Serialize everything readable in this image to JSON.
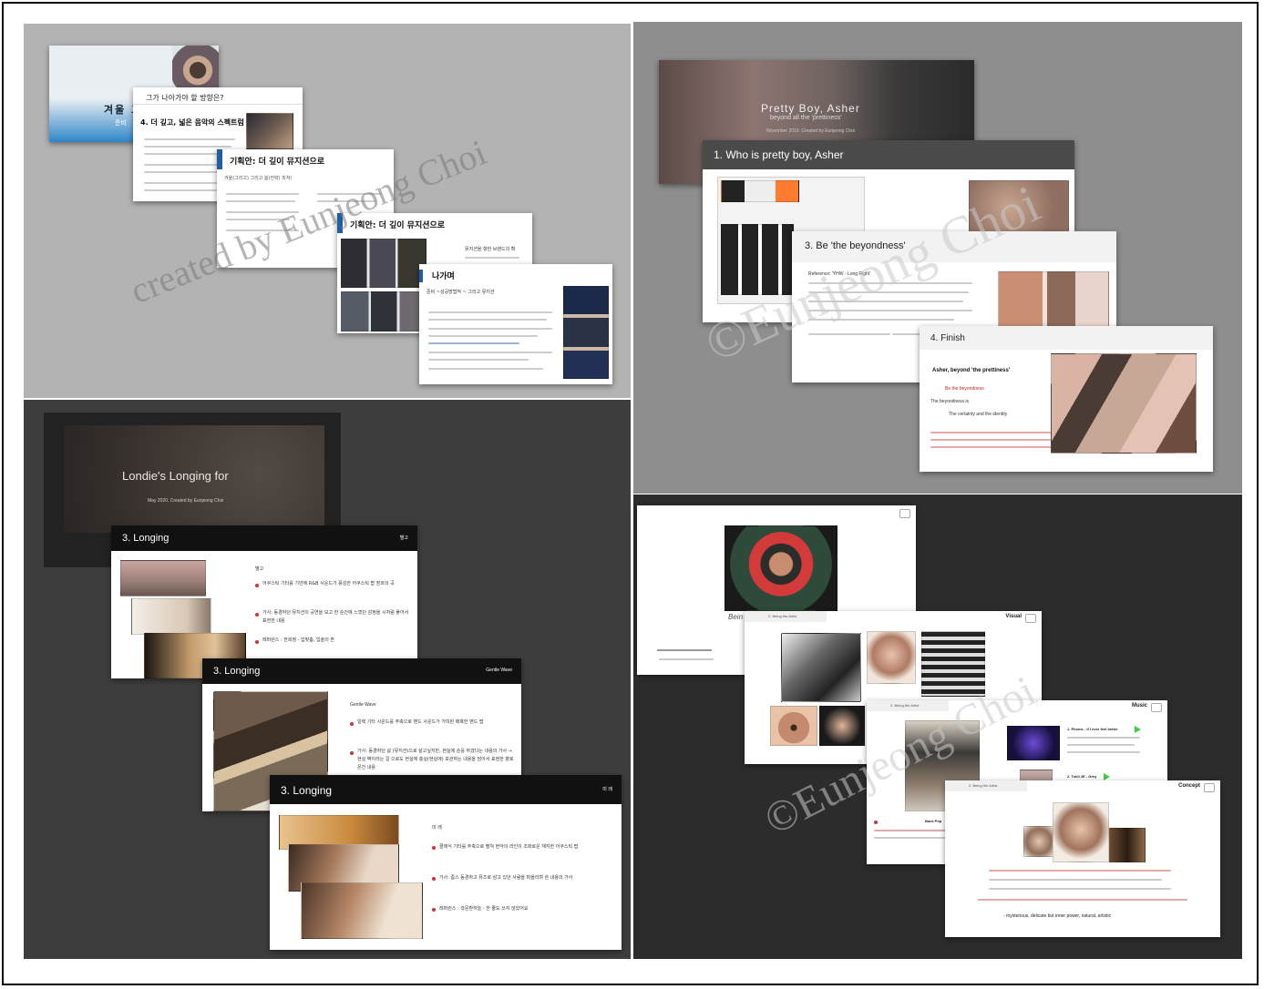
{
  "q1": {
    "cover_title": "겨울 그리고 봄",
    "cover_sub": "준비",
    "slide2_title": "그가 나아가야 할 방향은?",
    "slide2_heading": "4. 더 깊고, 넓은 음악의 스펙트럼",
    "slide3_title": "기획안: 더 깊이 뮤지션으로",
    "slide3_sub": "겨울(그리고) 그리고 봄(전략) 피쳐(",
    "slide4_title": "기획안: 더 깊이 뮤지션으로",
    "slide4_side": "뮤지션을 향한 브랜드의 확",
    "slide5_title": "나가며",
    "slide5_sub": "준비 ~성공방법적 ~ 그리고 뮤지션",
    "watermark": "created by Eunjeong Choi"
  },
  "q2": {
    "cover_title": "Pretty Boy, Asher",
    "cover_sub": "beyond all the 'prettiness'",
    "cover_meta": "November 2019, Created by Eunjeong Choi",
    "slide1_title": "1. Who is pretty boy, Asher",
    "slide2_title": "3. Be 'the beyondness'",
    "slide2_ref": "Reference: 'YHW - Long Right'",
    "slide3_title": "4. Finish",
    "slide3_lines": [
      "Asher, beyond 'the prettiness'",
      "Be the beyondness",
      "The beyondness is",
      "The certainty and the identity"
    ],
    "watermark": "©Eunjeong Choi"
  },
  "q3": {
    "cover_title": "Londie's Longing for",
    "cover_meta": "May 2020, Created by Eunjeong Choi",
    "slide1_title": "3. Longing",
    "slide1_tag": "별고",
    "slide1_heading": "별고",
    "slide1_bullets": [
      "어쿠스틱 기타를 기반에 R&B 사운드가 풍성한 어쿠스틱 팝 장르의 곡",
      "가사: 동경하던 뮤지션의 공연을 보고 한 순간에 느꼈던 감정을 시처럼 풀어서 표현한 내용",
      "레퍼런스 : 한희정 - 입맞춤, 입술의 흔"
    ],
    "slide2_title": "3. Longing",
    "slide2_tag": "Gentle Wave",
    "slide2_heading": "Gentle Wave",
    "slide2_bullets": [
      "일렉 기타 사운드를 주축으로 밴드 사운드가 가미된 매혹한 밴드 팝",
      "가사: 동경하던 삶 (뮤지션)으로 살고싶지만, 현실에 순응 하겠다는 내용의 가사 → 현실 벽이라는 걸 으로도 현실에 충실(현실에) 보관하는 내용을 담아서 표현한 향로 온건 내용"
    ],
    "slide3_title": "3. Longing",
    "slide3_tag": "미 래",
    "slide3_heading": "미 래",
    "slide3_bullets": [
      "클래식 기타를 주축으로 펼쳐 현악의 라인이 조화로운 재지한 어쿠스틱 팝",
      "가사: 좀스 동경하고 뮤즈로 삼고 있던 사람을 떠올리며 쓴 내용의 가사",
      "레퍼런스 : 곽문환하늘 - 한 줄도 쓰지 않았어요"
    ]
  },
  "q4": {
    "slide1_side": "Bein",
    "slide2_tag": "Visual",
    "slide2_header": "2. Being the Artist",
    "slide3_tag": "Music",
    "slide3_header": "2. Being the Artist",
    "slide3_tracks": [
      "1. Phonic - If I ever feel better",
      "2. Tohli 2E - Grey"
    ],
    "slide3_left_caption": "Back Pop",
    "slide4_tag": "Concept",
    "slide4_header": "2. Being the Artist",
    "slide4_footer": "- mysterious, delicate but inner power, natural, artistic",
    "watermark": "©Eunjeong Choi"
  }
}
